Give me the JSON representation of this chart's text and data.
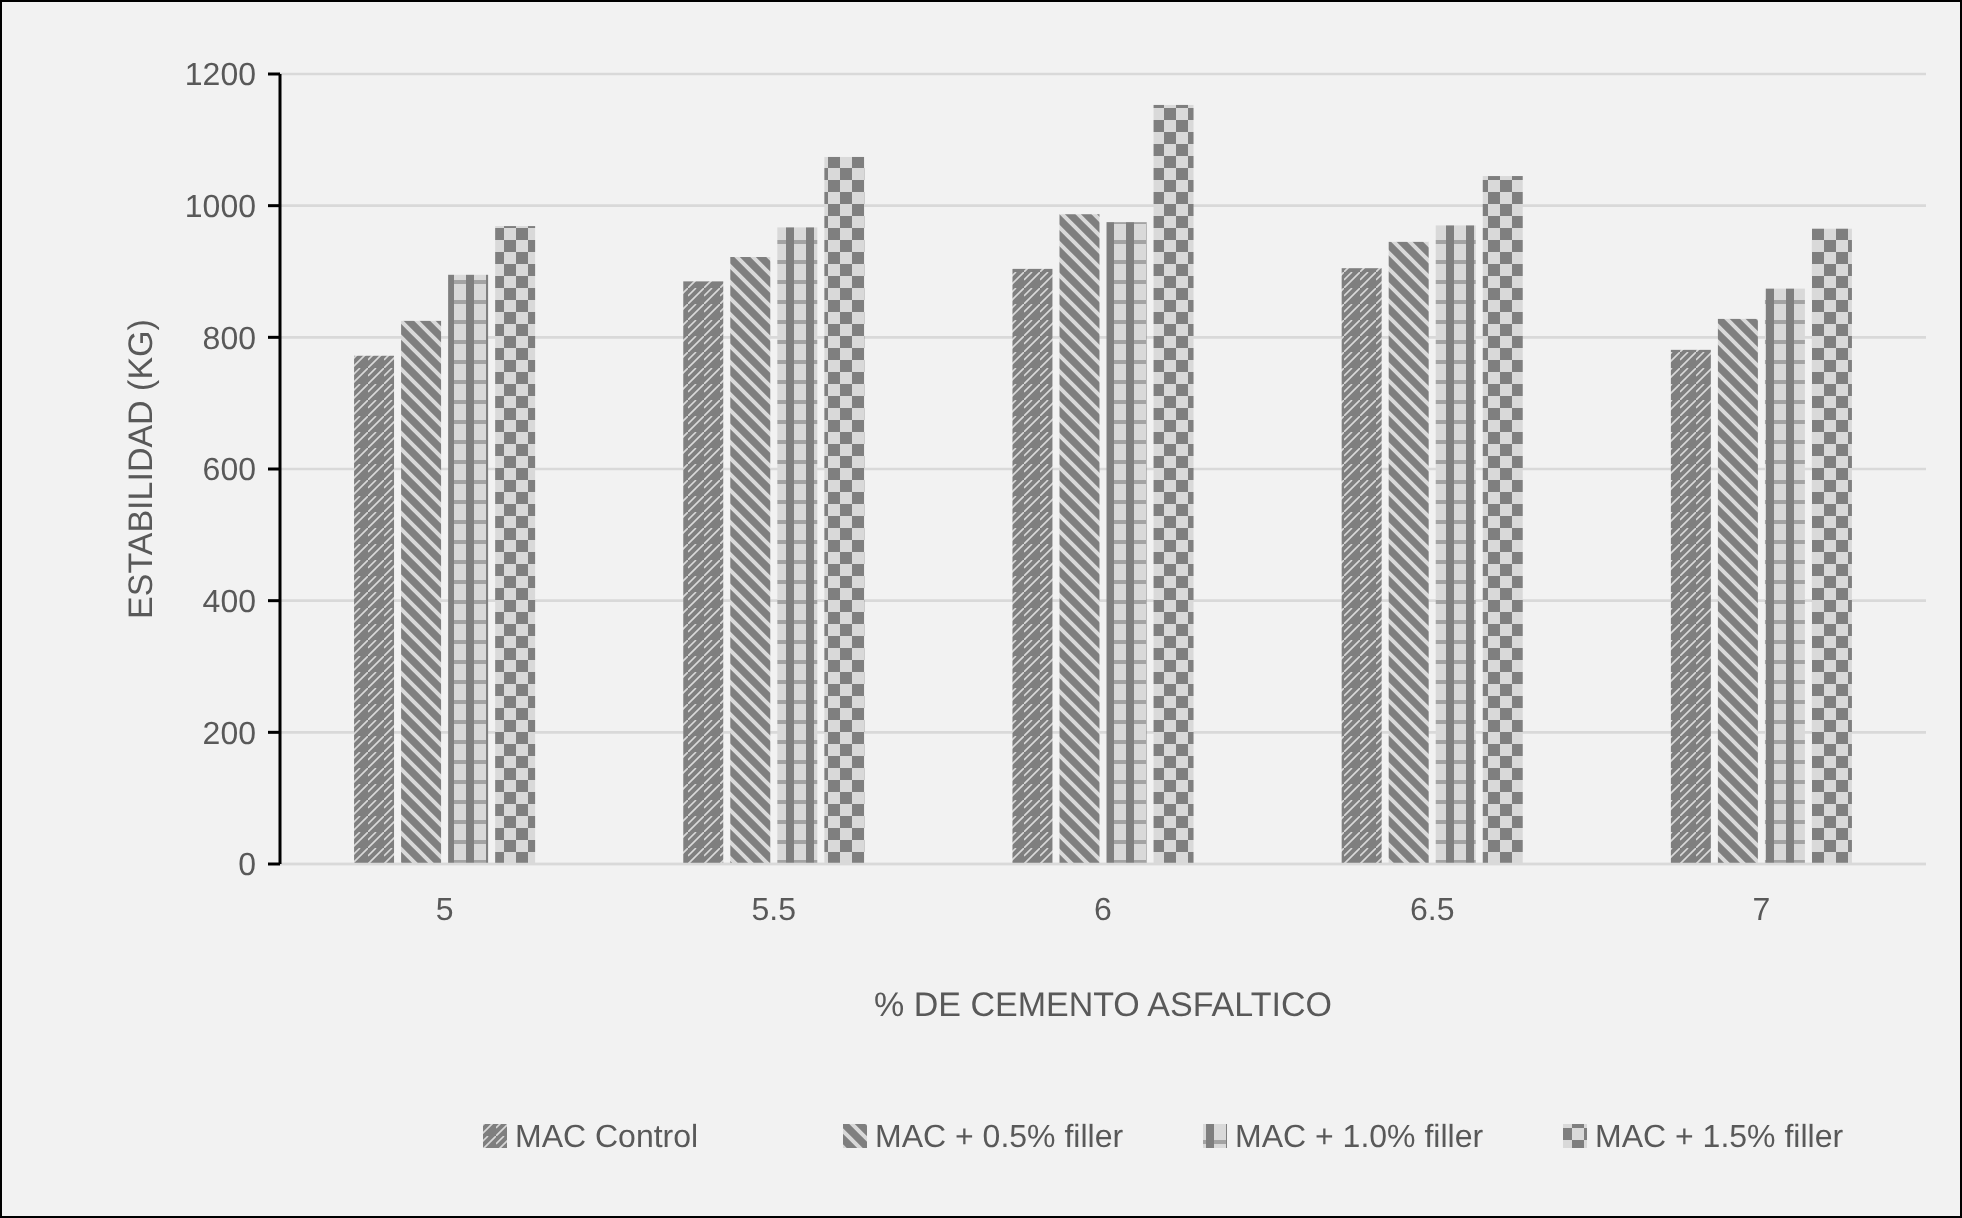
{
  "chart_data": {
    "type": "bar",
    "xlabel": "% DE CEMENTO ASFALTICO",
    "ylabel": "ESTABILIDAD (KG)",
    "categories": [
      "5",
      "5.5",
      "6",
      "6.5",
      "7"
    ],
    "series": [
      {
        "name": "MAC Control",
        "color": "#7f7f7f",
        "values": [
          772,
          885,
          904,
          905,
          781
        ]
      },
      {
        "name": "MAC + 0.5% filler",
        "color": "#7f7f7f",
        "values": [
          825,
          922,
          987,
          945,
          828
        ]
      },
      {
        "name": "MAC + 1.0% filler",
        "color": "#7f7f7f",
        "values": [
          895,
          967,
          975,
          970,
          874
        ]
      },
      {
        "name": "MAC + 1.5% filler",
        "color": "#7f7f7f",
        "values": [
          969,
          1074,
          1153,
          1045,
          965
        ]
      }
    ],
    "ylim": [
      0,
      1200
    ],
    "yticks": [
      0,
      200,
      400,
      600,
      800,
      1000,
      1200
    ],
    "grid": "y",
    "legend": "bottom"
  }
}
